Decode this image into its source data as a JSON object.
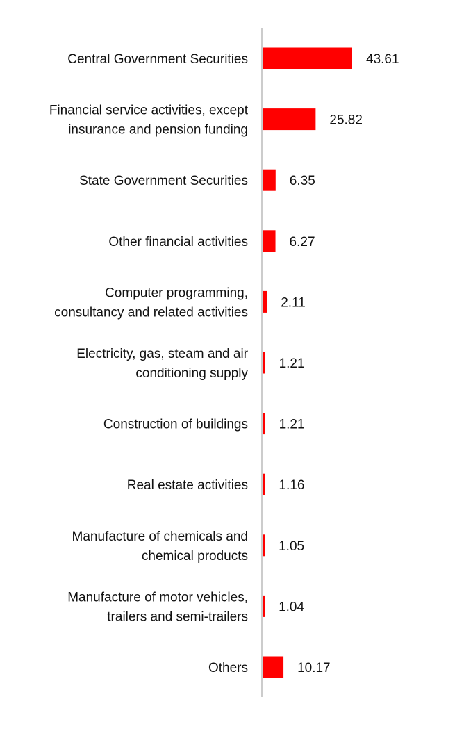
{
  "chart_data": {
    "type": "bar",
    "orientation": "horizontal",
    "categories": [
      [
        "Central Government Securities"
      ],
      [
        "Financial service activities, except",
        "insurance and pension funding"
      ],
      [
        "State Government Securities"
      ],
      [
        "Other financial activities"
      ],
      [
        "Computer programming,",
        "consultancy and related activities"
      ],
      [
        "Electricity, gas, steam and air",
        "conditioning supply"
      ],
      [
        "Construction of buildings"
      ],
      [
        "Real estate activities"
      ],
      [
        "Manufacture of chemicals and",
        "chemical products"
      ],
      [
        "Manufacture of motor vehicles,",
        "trailers and semi-trailers"
      ],
      [
        "Others"
      ]
    ],
    "values": [
      43.61,
      25.82,
      6.35,
      6.27,
      2.11,
      1.21,
      1.21,
      1.16,
      1.05,
      1.04,
      10.17
    ],
    "value_labels": [
      "43.61",
      "25.82",
      "6.35",
      "6.27",
      "2.11",
      "1.21",
      "1.21",
      "1.16",
      "1.05",
      "1.04",
      "10.17"
    ],
    "xlim": [
      0,
      43.61
    ],
    "grid": false,
    "legend": "none",
    "bar_color": "#ff0000",
    "axis_color": "#cccccc"
  }
}
